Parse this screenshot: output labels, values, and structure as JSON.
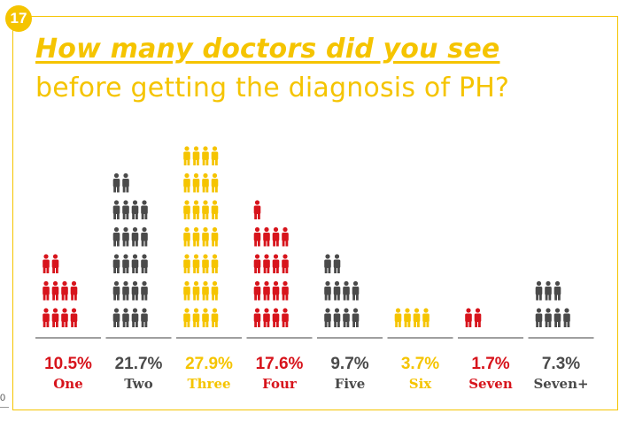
{
  "badge": "17",
  "title": "How many doctors did you see",
  "subtitle": "before getting the diagnosis of PH?",
  "page_number": "0",
  "colors": {
    "accent": "#f5c400",
    "red": "#d7141c",
    "gray": "#4a4a4a",
    "baseline": "#666666"
  },
  "chart_data": {
    "type": "bar",
    "title": "How many doctors did you see before getting the diagnosis of PH?",
    "categories": [
      "One",
      "Two",
      "Three",
      "Four",
      "Five",
      "Six",
      "Seven",
      "Seven+"
    ],
    "values": [
      10.5,
      21.7,
      27.9,
      17.6,
      9.7,
      3.7,
      1.7,
      7.3
    ],
    "value_labels": [
      "10.5%",
      "21.7%",
      "27.9%",
      "17.6%",
      "9.7%",
      "3.7%",
      "1.7%",
      "7.3%"
    ],
    "icon_counts": [
      10,
      22,
      28,
      17,
      10,
      4,
      2,
      7
    ],
    "colors": [
      "#d7141c",
      "#4a4a4a",
      "#f5c400",
      "#d7141c",
      "#4a4a4a",
      "#f5c400",
      "#d7141c",
      "#4a4a4a"
    ],
    "unit": "%",
    "icon": "person-icon"
  }
}
